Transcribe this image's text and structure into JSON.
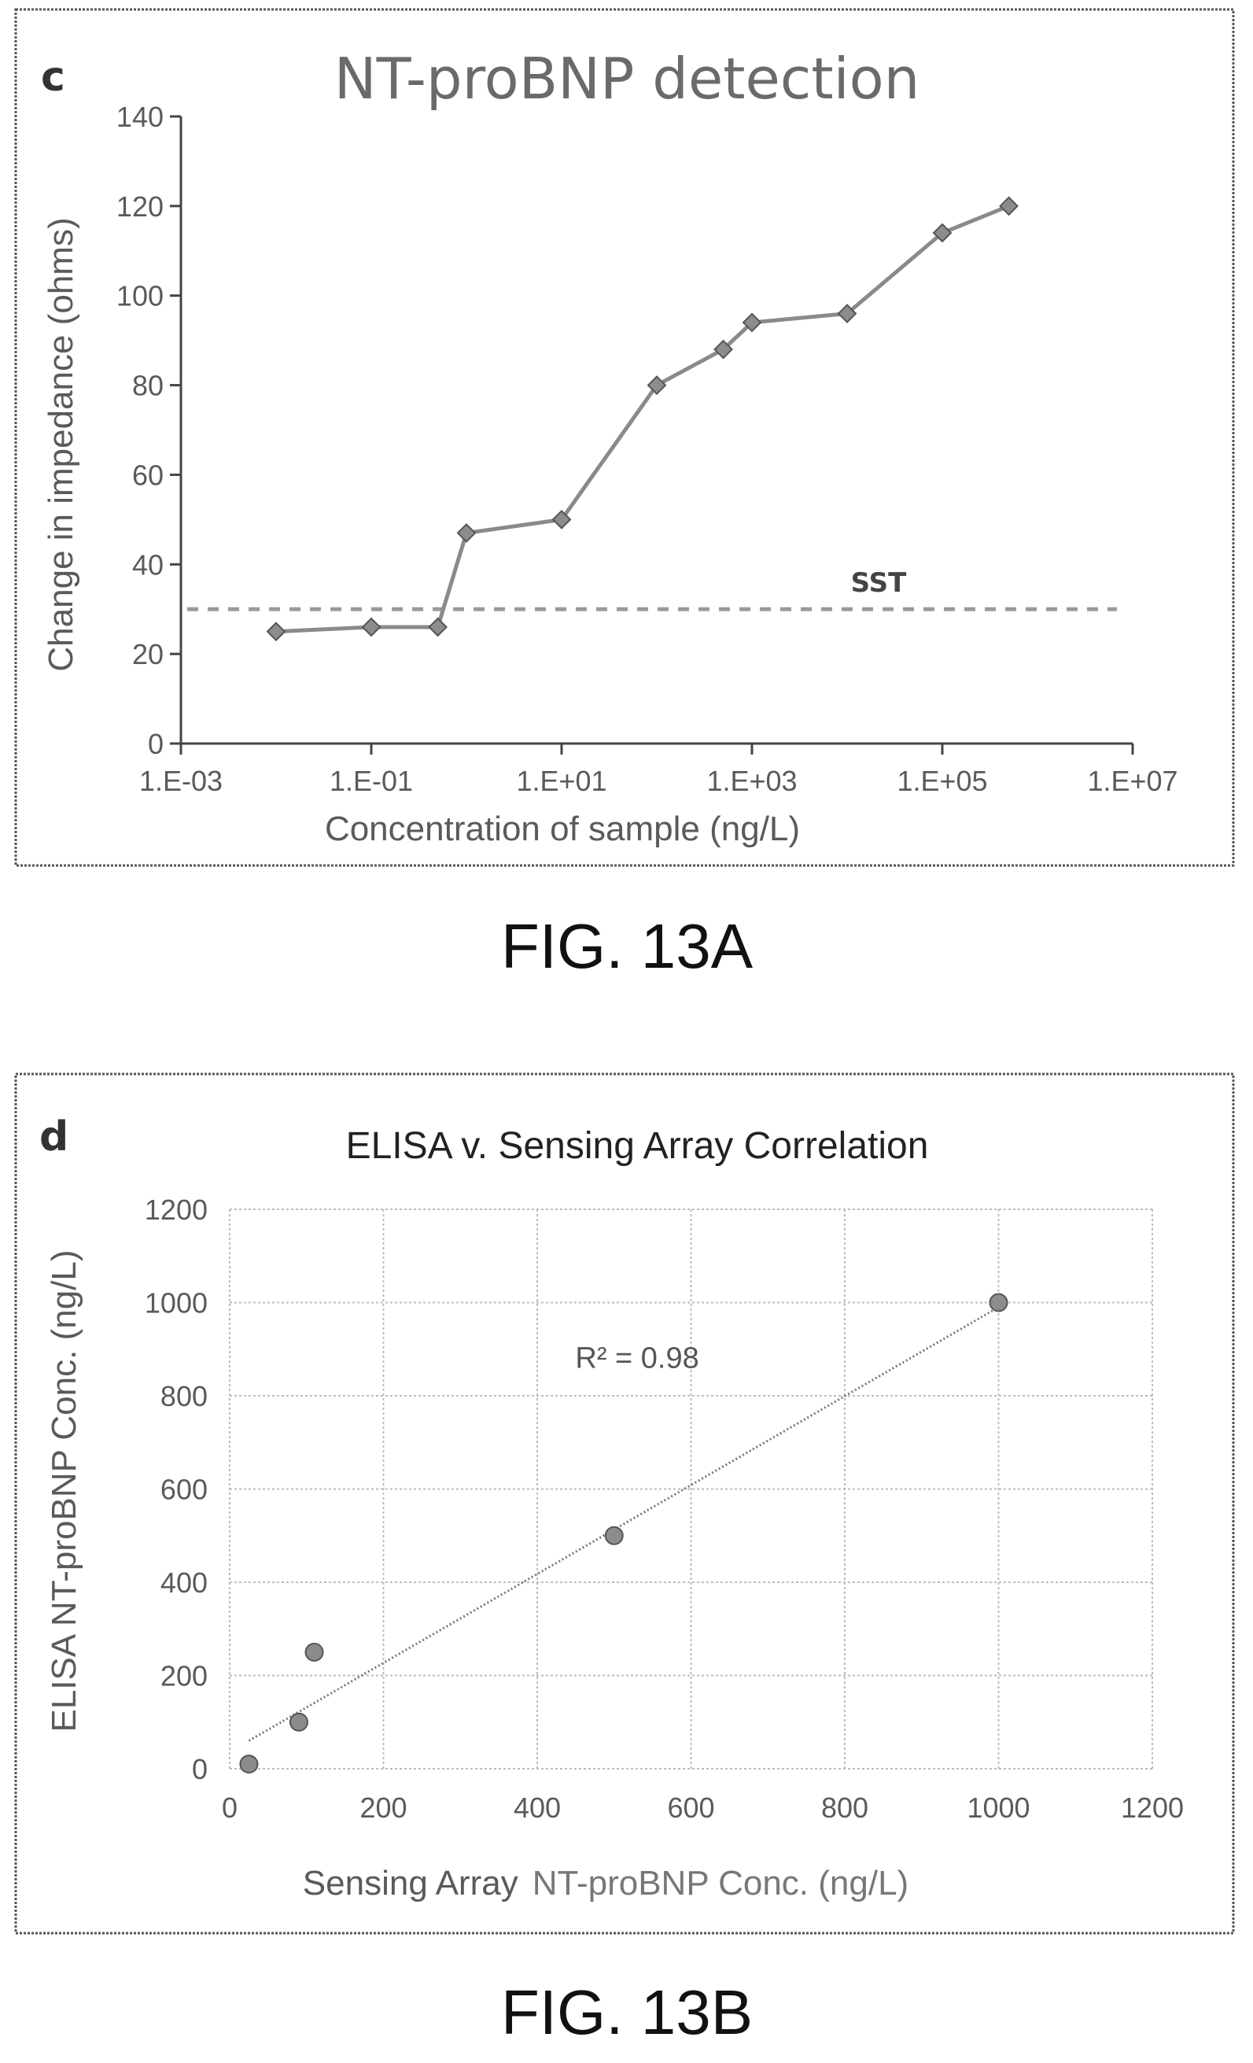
{
  "chart_data": [
    {
      "type": "line",
      "panel_letter": "c",
      "title": "NT-proBNP detection",
      "xlabel": "Concentration of sample (ng/L)",
      "ylabel": "Change in impedance (ohms)",
      "x_scale": "log",
      "xlim": [
        0.001,
        10000000
      ],
      "ylim": [
        0,
        140
      ],
      "x_ticks": [
        0.001,
        0.1,
        10,
        1000,
        100000,
        10000000
      ],
      "x_tick_labels": [
        "1.E-03",
        "1.E-01",
        "1.E+01",
        "1.E+03",
        "1.E+05",
        "1.E+07"
      ],
      "y_ticks": [
        0,
        20,
        40,
        60,
        80,
        100,
        120,
        140
      ],
      "y_tick_labels": [
        "0",
        "20",
        "40",
        "60",
        "80",
        "100",
        "120",
        "140"
      ],
      "grid": false,
      "series": [
        {
          "x": [
            0.01,
            0.1,
            0.5,
            1,
            10,
            100,
            500,
            1000,
            10000,
            100000,
            500000
          ],
          "y": [
            25,
            26,
            26,
            47,
            50,
            80,
            88,
            94,
            96,
            114,
            120
          ]
        }
      ],
      "reference_line": {
        "label": "SST",
        "y": 30
      },
      "caption": "FIG. 13A"
    },
    {
      "type": "scatter",
      "panel_letter": "d",
      "title": "ELISA v. Sensing Array Correlation",
      "xlabel_prefix": "Sensing Array",
      "xlabel_suffix": "NT-proBNP Conc. (ng/L)",
      "ylabel": "ELISA NT-proBNP Conc. (ng/L)",
      "xlim": [
        0,
        1200
      ],
      "ylim": [
        0,
        1200
      ],
      "x_ticks": [
        0,
        200,
        400,
        600,
        800,
        1000,
        1200
      ],
      "x_tick_labels": [
        "0",
        "200",
        "400",
        "600",
        "800",
        "1000",
        "1200"
      ],
      "y_ticks": [
        0,
        200,
        400,
        600,
        800,
        1000,
        1200
      ],
      "y_tick_labels": [
        "0",
        "200",
        "400",
        "600",
        "800",
        "1000",
        "1200"
      ],
      "grid": true,
      "series": [
        {
          "x": [
            25,
            90,
            110,
            500,
            1000
          ],
          "y": [
            10,
            100,
            250,
            500,
            1000
          ]
        }
      ],
      "trendline": {
        "x": [
          25,
          1000
        ],
        "y": [
          60,
          990
        ]
      },
      "annotation": "R² = 0.98",
      "caption": "FIG. 13B"
    }
  ]
}
